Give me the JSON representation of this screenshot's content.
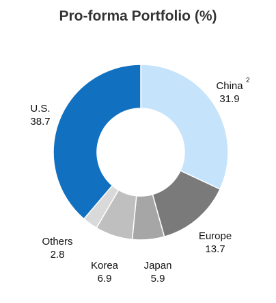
{
  "chart_data": {
    "type": "pie",
    "title": "Pro-forma Portfolio (%)",
    "donut": true,
    "slices": [
      {
        "name": "China",
        "value": 31.9,
        "color": "#c5e3fb",
        "footnote": "2"
      },
      {
        "name": "Europe",
        "value": 13.7,
        "color": "#7a7a7a"
      },
      {
        "name": "Japan",
        "value": 5.9,
        "color": "#a6a6a6"
      },
      {
        "name": "Korea",
        "value": 6.9,
        "color": "#bfbfbf"
      },
      {
        "name": "Others",
        "value": 2.8,
        "color": "#d9d9d9"
      },
      {
        "name": "U.S.",
        "value": 38.7,
        "color": "#1170bf"
      }
    ]
  }
}
